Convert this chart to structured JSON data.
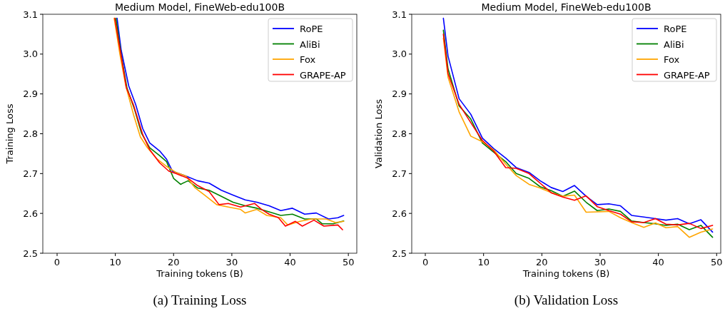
{
  "chart_data": [
    {
      "type": "line",
      "title": "Medium Model, FineWeb-edu100B",
      "xlabel": "Training tokens (B)",
      "ylabel": "Training Loss",
      "xlim": [
        -2.45,
        51.45
      ],
      "ylim": [
        2.5,
        3.1
      ],
      "xticks": [
        0,
        10,
        20,
        30,
        40,
        50
      ],
      "yticks": [
        2.5,
        2.6,
        2.7,
        2.8,
        2.9,
        {
          "value": 3,
          "label": "3.0"
        },
        3.1
      ],
      "legend": "top right",
      "grid": false,
      "annotations": [
        "(a) Training Loss"
      ],
      "series": [
        {
          "name": "RoPE",
          "color": "#0000ff",
          "x": [
            10.3,
            11.0,
            12.3,
            13.5,
            14.7,
            15.9,
            17.6,
            18.8,
            19.8,
            22.1,
            24.1,
            26.1,
            28.2,
            30.2,
            32.3,
            34.3,
            36.4,
            38.4,
            40.4,
            42.5,
            44.5,
            46.6,
            48.2,
            49.2
          ],
          "values": [
            3.09,
            3.01,
            2.92,
            2.873,
            2.813,
            2.777,
            2.757,
            2.736,
            2.706,
            2.694,
            2.682,
            2.676,
            2.658,
            2.646,
            2.634,
            2.628,
            2.619,
            2.607,
            2.613,
            2.598,
            2.601,
            2.586,
            2.589,
            2.595
          ]
        },
        {
          "name": "AliBi",
          "color": "#008000",
          "x": [
            10.1,
            11.0,
            12.0,
            13.3,
            14.5,
            15.9,
            17.6,
            18.8,
            20.0,
            21.2,
            22.5,
            24.1,
            26.1,
            28.2,
            30.2,
            32.3,
            34.3,
            36.4,
            38.4,
            40.4,
            42.5,
            44.5,
            45.5,
            47.4,
            49.2
          ],
          "values": [
            3.09,
            2.998,
            2.915,
            2.861,
            2.801,
            2.765,
            2.745,
            2.73,
            2.688,
            2.673,
            2.682,
            2.664,
            2.658,
            2.643,
            2.628,
            2.619,
            2.613,
            2.604,
            2.595,
            2.598,
            2.586,
            2.586,
            2.574,
            2.574,
            2.581
          ]
        },
        {
          "name": "Fox",
          "color": "#ffa500",
          "x": [
            9.8,
            10.8,
            11.8,
            13.1,
            14.3,
            15.5,
            17.2,
            18.8,
            20.4,
            22.1,
            23.7,
            25.3,
            27.4,
            29.4,
            31.5,
            32.3,
            34.3,
            36.0,
            38.4,
            39.6,
            41.7,
            43.7,
            46.2,
            47.8,
            49.2
          ],
          "values": [
            3.09,
            2.998,
            2.92,
            2.849,
            2.792,
            2.765,
            2.736,
            2.718,
            2.703,
            2.694,
            2.664,
            2.646,
            2.622,
            2.616,
            2.61,
            2.601,
            2.61,
            2.595,
            2.589,
            2.571,
            2.58,
            2.586,
            2.586,
            2.577,
            2.58
          ]
        },
        {
          "name": "GRAPE-AP",
          "color": "#ff0000",
          "x": [
            9.9,
            10.9,
            11.9,
            13.1,
            14.7,
            15.9,
            17.6,
            19.2,
            20.4,
            22.5,
            24.1,
            26.1,
            27.8,
            29.4,
            31.5,
            33.9,
            35.1,
            36.4,
            38.0,
            39.2,
            40.9,
            42.1,
            44.1,
            45.8,
            48.2,
            49.0
          ],
          "values": [
            3.09,
            3.004,
            2.915,
            2.873,
            2.798,
            2.76,
            2.727,
            2.706,
            2.7,
            2.688,
            2.67,
            2.655,
            2.622,
            2.625,
            2.616,
            2.625,
            2.61,
            2.598,
            2.589,
            2.568,
            2.58,
            2.568,
            2.583,
            2.568,
            2.571,
            2.559
          ]
        }
      ]
    },
    {
      "type": "line",
      "title": "Medium Model, FineWeb-edu100B",
      "xlabel": "Training tokens (B)",
      "ylabel": "Validation Loss",
      "xlim": [
        -2.33,
        50.7
      ],
      "ylim": [
        2.5,
        3.1
      ],
      "xticks": [
        0,
        10,
        20,
        30,
        40,
        50
      ],
      "yticks": [
        2.5,
        2.6,
        2.7,
        2.8,
        2.9,
        {
          "value": 3,
          "label": "3.0"
        },
        3.1
      ],
      "legend": "top right",
      "grid": false,
      "annotations": [
        "(b) Validation Loss"
      ],
      "x": [
        3.1,
        3.9,
        5.8,
        7.8,
        9.8,
        11.7,
        13.8,
        15.6,
        17.8,
        19.7,
        21.6,
        23.6,
        25.6,
        27.6,
        29.5,
        31.5,
        33.5,
        35.4,
        37.5,
        39.5,
        41.3,
        43.3,
        45.3,
        47.3,
        49.3
      ],
      "series": [
        {
          "name": "RoPE",
          "color": "#0000ff",
          "values": [
            3.09,
            2.995,
            2.888,
            2.849,
            2.789,
            2.763,
            2.739,
            2.715,
            2.703,
            2.682,
            2.665,
            2.655,
            2.67,
            2.643,
            2.622,
            2.624,
            2.619,
            2.595,
            2.591,
            2.587,
            2.583,
            2.587,
            2.574,
            2.584,
            2.553
          ]
        },
        {
          "name": "AliBi",
          "color": "#008000",
          "values": [
            3.06,
            2.963,
            2.87,
            2.837,
            2.777,
            2.754,
            2.73,
            2.7,
            2.688,
            2.667,
            2.657,
            2.643,
            2.656,
            2.628,
            2.607,
            2.611,
            2.605,
            2.581,
            2.577,
            2.574,
            2.57,
            2.573,
            2.559,
            2.57,
            2.54
          ]
        },
        {
          "name": "Fox",
          "color": "#ffa500",
          "values": [
            3.04,
            2.942,
            2.855,
            2.794,
            2.78,
            2.76,
            2.724,
            2.695,
            2.673,
            2.664,
            2.652,
            2.643,
            2.646,
            2.603,
            2.604,
            2.605,
            2.589,
            2.577,
            2.565,
            2.576,
            2.564,
            2.567,
            2.54,
            2.553,
            2.561
          ]
        },
        {
          "name": "GRAPE-AP",
          "color": "#ff0000",
          "values": [
            3.05,
            2.951,
            2.874,
            2.828,
            2.783,
            2.757,
            2.715,
            2.713,
            2.7,
            2.676,
            2.652,
            2.641,
            2.633,
            2.644,
            2.617,
            2.607,
            2.598,
            2.579,
            2.577,
            2.587,
            2.573,
            2.571,
            2.575,
            2.562,
            2.57
          ]
        }
      ]
    }
  ]
}
